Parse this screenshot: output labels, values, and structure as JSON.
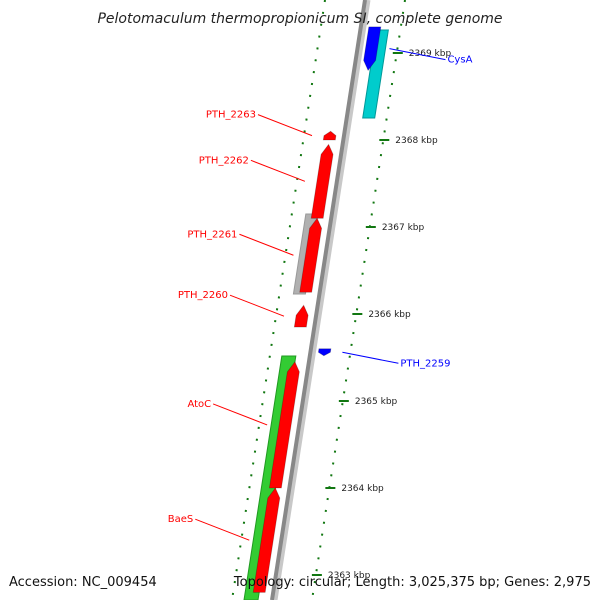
{
  "title": "Pelotomaculum thermopropionicum SI, complete genome",
  "accession": "Accession: NC_009454",
  "summary": "Topology: circular; Length: 3,025,375 bp; Genes: 2,975",
  "colors": {
    "forward_cds": "#ff0000",
    "reverse_cds": "#0000ff",
    "gc_content": "#00cccc",
    "rna": "#33cc33",
    "other": "#b0b0b0",
    "backbone": "#888888",
    "tick": "#117711"
  },
  "scale": {
    "unit": "kbp",
    "ticks": [
      {
        "value": 2369,
        "label": "2369 kbp"
      },
      {
        "value": 2368,
        "label": "2368 kbp"
      },
      {
        "value": 2367,
        "label": "2367 kbp"
      },
      {
        "value": 2366,
        "label": "2366 kbp"
      },
      {
        "value": 2365,
        "label": "2365 kbp"
      },
      {
        "value": 2364,
        "label": "2364 kbp"
      },
      {
        "value": 2363,
        "label": "2363 kbp"
      }
    ]
  },
  "features": [
    {
      "label": "CysA",
      "color": "#0000ff",
      "start": 2368.8,
      "end": 2369.3,
      "lane": "right"
    },
    {
      "label": "PTH_2263",
      "color": "#ff0000",
      "start": 2368.0,
      "end": 2368.1,
      "lane": "left"
    },
    {
      "label": "PTH_2262",
      "color": "#ff0000",
      "start": 2367.1,
      "end": 2367.95,
      "lane": "left"
    },
    {
      "label": "PTH_2261",
      "color": "#ff0000",
      "start": 2366.25,
      "end": 2367.1,
      "lane": "left"
    },
    {
      "label": "PTH_2260",
      "color": "#ff0000",
      "start": 2365.85,
      "end": 2366.1,
      "lane": "left"
    },
    {
      "label": "PTH_2259",
      "color": "#0000ff",
      "start": 2365.52,
      "end": 2365.6,
      "lane": "right"
    },
    {
      "label": "AtoC",
      "color": "#ff0000",
      "start": 2364.0,
      "end": 2365.45,
      "lane": "left"
    },
    {
      "label": "BaeS",
      "color": "#ff0000",
      "start": 2362.8,
      "end": 2364.0,
      "lane": "left"
    }
  ]
}
